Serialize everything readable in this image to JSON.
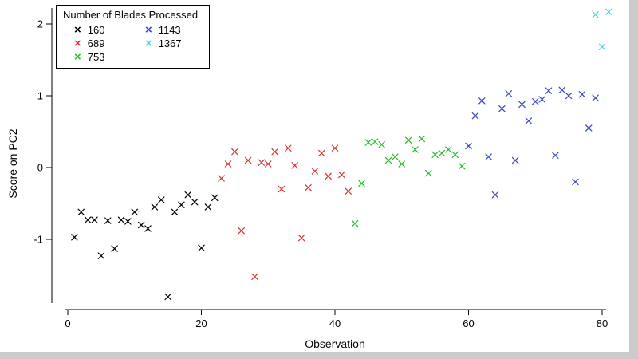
{
  "figure": {
    "background": "#ffffff",
    "margin_color": "#cbcbcb",
    "axis_color": "#000000"
  },
  "chart_data": {
    "type": "scatter",
    "title": "",
    "xlabel": "Observation",
    "ylabel": "Score on PC2",
    "xlim": [
      0,
      82
    ],
    "ylim": [
      -1.9,
      2.3
    ],
    "x_ticks": [
      0,
      20,
      40,
      60,
      80
    ],
    "y_ticks": [
      -1,
      0,
      1,
      2
    ],
    "grid": false,
    "marker": "x",
    "marker_glyph": "×",
    "legend": {
      "title": "Number of Blades Processed",
      "position": "top-left",
      "columns": 2,
      "rows": 3
    },
    "series": [
      {
        "name": "160",
        "color": "#000000",
        "points": [
          [
            1,
            -0.97
          ],
          [
            2,
            -0.62
          ],
          [
            3,
            -0.73
          ],
          [
            4,
            -0.73
          ],
          [
            5,
            -1.23
          ],
          [
            6,
            -0.74
          ],
          [
            7,
            -1.13
          ],
          [
            8,
            -0.73
          ],
          [
            9,
            -0.75
          ],
          [
            10,
            -0.62
          ],
          [
            11,
            -0.8
          ],
          [
            12,
            -0.85
          ],
          [
            13,
            -0.55
          ],
          [
            14,
            -0.45
          ],
          [
            15,
            -1.8
          ],
          [
            16,
            -0.62
          ],
          [
            17,
            -0.52
          ],
          [
            18,
            -0.38
          ],
          [
            19,
            -0.48
          ],
          [
            20,
            -1.12
          ],
          [
            21,
            -0.55
          ],
          [
            22,
            -0.42
          ]
        ]
      },
      {
        "name": "689",
        "color": "#e03030",
        "points": [
          [
            23,
            -0.15
          ],
          [
            24,
            0.05
          ],
          [
            25,
            0.22
          ],
          [
            26,
            -0.88
          ],
          [
            27,
            0.1
          ],
          [
            28,
            -1.52
          ],
          [
            29,
            0.07
          ],
          [
            30,
            0.05
          ],
          [
            31,
            0.22
          ],
          [
            32,
            -0.3
          ],
          [
            33,
            0.27
          ],
          [
            34,
            0.03
          ],
          [
            35,
            -0.98
          ],
          [
            36,
            -0.28
          ],
          [
            37,
            -0.05
          ],
          [
            38,
            0.2
          ],
          [
            39,
            -0.12
          ],
          [
            40,
            0.27
          ],
          [
            41,
            -0.1
          ],
          [
            42,
            -0.33
          ]
        ]
      },
      {
        "name": "753",
        "color": "#2eb82e",
        "points": [
          [
            43,
            -0.78
          ],
          [
            44,
            -0.22
          ],
          [
            45,
            0.35
          ],
          [
            46,
            0.36
          ],
          [
            47,
            0.32
          ],
          [
            48,
            0.1
          ],
          [
            49,
            0.15
          ],
          [
            50,
            0.05
          ],
          [
            51,
            0.38
          ],
          [
            52,
            0.25
          ],
          [
            53,
            0.4
          ],
          [
            54,
            -0.08
          ],
          [
            55,
            0.18
          ],
          [
            56,
            0.2
          ],
          [
            57,
            0.25
          ],
          [
            58,
            0.18
          ],
          [
            59,
            0.02
          ]
        ]
      },
      {
        "name": "1143",
        "color": "#3a45c8",
        "points": [
          [
            60,
            0.3
          ],
          [
            61,
            0.72
          ],
          [
            62,
            0.93
          ],
          [
            63,
            0.15
          ],
          [
            64,
            -0.38
          ],
          [
            65,
            0.82
          ],
          [
            66,
            1.03
          ],
          [
            67,
            0.1
          ],
          [
            68,
            0.88
          ],
          [
            69,
            0.65
          ],
          [
            70,
            0.92
          ],
          [
            71,
            0.95
          ],
          [
            72,
            1.07
          ],
          [
            73,
            0.17
          ],
          [
            74,
            1.08
          ],
          [
            75,
            1.0
          ],
          [
            76,
            -0.2
          ],
          [
            77,
            1.02
          ],
          [
            78,
            0.55
          ],
          [
            79,
            0.97
          ]
        ]
      },
      {
        "name": "1367",
        "color": "#3fd6e3",
        "points": [
          [
            79,
            2.13
          ],
          [
            81,
            2.17
          ],
          [
            80,
            1.68
          ]
        ]
      }
    ]
  }
}
